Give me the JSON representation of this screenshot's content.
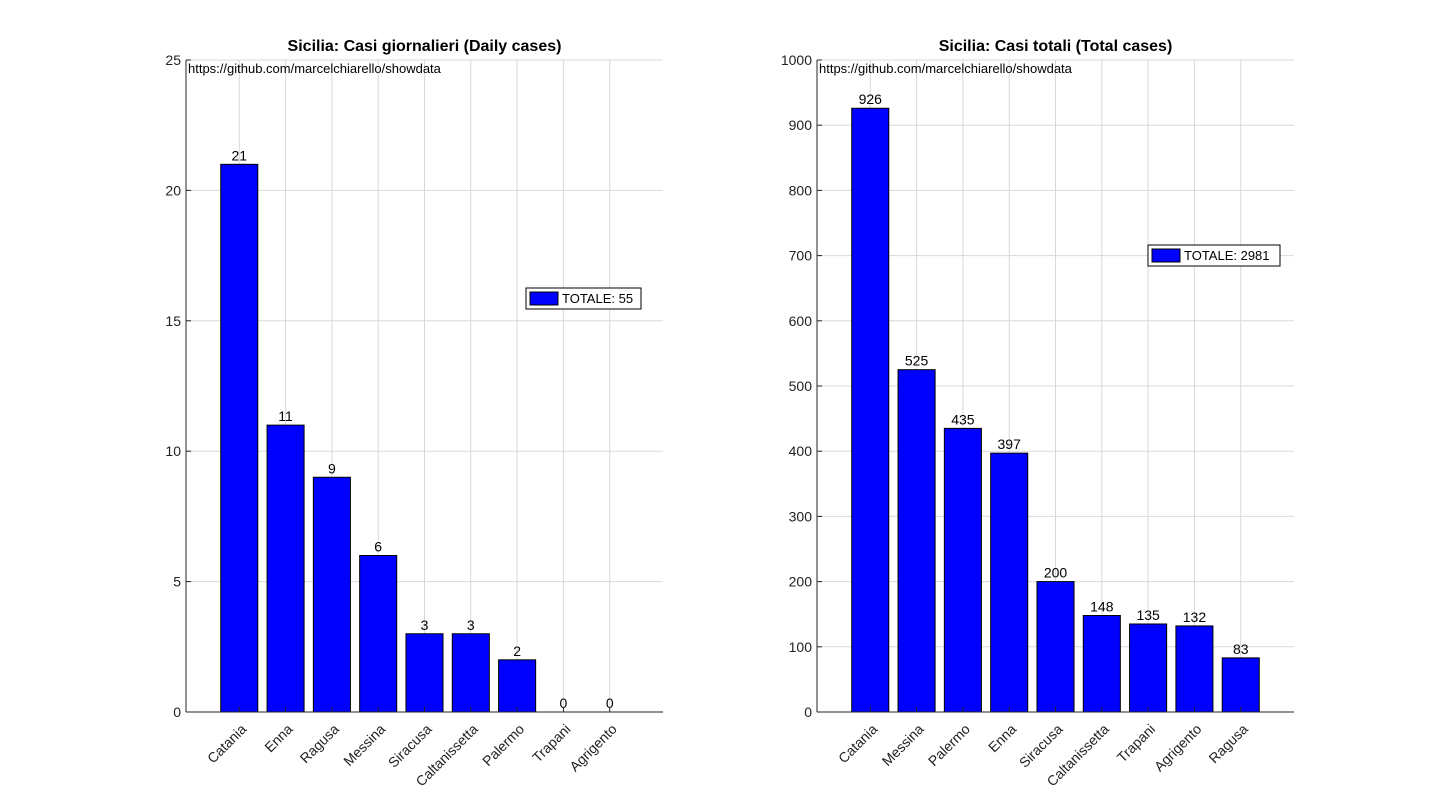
{
  "colors": {
    "bar": "#0000ff",
    "bar_edge": "#000000",
    "grid": "#d9d9d9",
    "axis": "#262626"
  },
  "chart_data": [
    {
      "type": "bar",
      "title": "Sicilia: Casi giornalieri (Daily cases)",
      "annotation": "https://github.com/marcelchiarello/showdata",
      "categories": [
        "Catania",
        "Enna",
        "Ragusa",
        "Messina",
        "Siracusa",
        "Caltanissetta",
        "Palermo",
        "Trapani",
        "Agrigento"
      ],
      "series": [
        {
          "name": "TOTALE: 55",
          "values": [
            21,
            11,
            9,
            6,
            3,
            3,
            2,
            0,
            0
          ]
        }
      ],
      "ylim": [
        0,
        25
      ],
      "yticks": [
        0,
        5,
        10,
        15,
        20,
        25
      ],
      "grid": true,
      "legend": "right"
    },
    {
      "type": "bar",
      "title": "Sicilia: Casi totali (Total cases)",
      "annotation": "https://github.com/marcelchiarello/showdata",
      "categories": [
        "Catania",
        "Messina",
        "Palermo",
        "Enna",
        "Siracusa",
        "Caltanissetta",
        "Trapani",
        "Agrigento",
        "Ragusa"
      ],
      "series": [
        {
          "name": "TOTALE: 2981",
          "values": [
            926,
            525,
            435,
            397,
            200,
            148,
            135,
            132,
            83
          ]
        }
      ],
      "ylim": [
        0,
        1000
      ],
      "yticks": [
        0,
        100,
        200,
        300,
        400,
        500,
        600,
        700,
        800,
        900,
        1000
      ],
      "grid": true,
      "legend": "right"
    }
  ]
}
